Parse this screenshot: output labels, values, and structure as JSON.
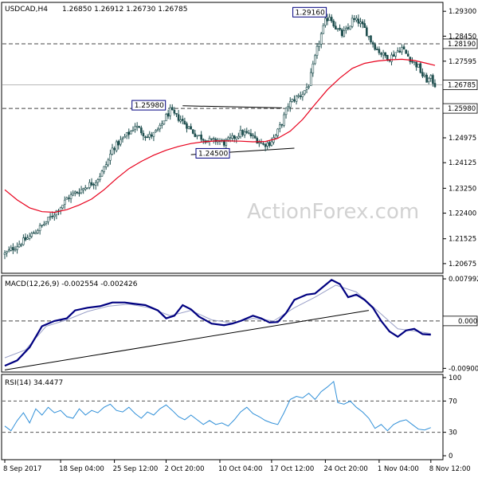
{
  "watermark": "ActionForex.com",
  "header": {
    "symbol_tf": "USDCAD,H4",
    "ohlc": "1.26850 1.26912 1.26730 1.26785"
  },
  "macd_label": "MACD(12,26,9) -0.002554 -0.002426",
  "rsi_label": "RSI(14) 34.4477",
  "colors": {
    "candle": "#1e4e4e",
    "ma": "#e8001c",
    "macd": "#000080",
    "signal": "#9aa0c8",
    "rsi": "#2f8fd8",
    "tag_border": "#000080"
  },
  "chart_data": [
    {
      "type": "candlestick",
      "title": "USDCAD,H4",
      "ylim": [
        1.204,
        1.2955
      ],
      "yticks": [
        "1.29300",
        "1.28450",
        "1.27595",
        "1.26785",
        "1.25980",
        "1.24975",
        "1.24125",
        "1.23250",
        "1.22400",
        "1.21525",
        "1.20675"
      ],
      "price_tags": {
        "right": [
          "1.28190",
          "1.26785",
          "1.25980"
        ],
        "inline": [
          {
            "label": "1.29160",
            "value": 1.2916
          },
          {
            "label": "1.25980",
            "value": 1.2598
          },
          {
            "label": "1.24500",
            "value": 1.245
          }
        ]
      },
      "horizontal_lines": [
        1.2819,
        1.2598
      ],
      "current_price": 1.26785,
      "close_path": [
        [
          0,
          1.21
        ],
        [
          4,
          1.212
        ],
        [
          8,
          1.214
        ],
        [
          12,
          1.216
        ],
        [
          16,
          1.2185
        ],
        [
          20,
          1.221
        ],
        [
          24,
          1.224
        ],
        [
          28,
          1.227
        ],
        [
          30,
          1.229
        ],
        [
          33,
          1.2305
        ],
        [
          37,
          1.232
        ],
        [
          40,
          1.2335
        ],
        [
          44,
          1.235
        ],
        [
          47,
          1.238
        ],
        [
          50,
          1.242
        ],
        [
          52,
          1.246
        ],
        [
          55,
          1.248
        ],
        [
          58,
          1.25
        ],
        [
          61,
          1.252
        ],
        [
          63,
          1.254
        ],
        [
          66,
          1.252
        ],
        [
          69,
          1.25
        ],
        [
          72,
          1.251
        ],
        [
          75,
          1.253
        ],
        [
          77,
          1.256
        ],
        [
          80,
          1.259
        ],
        [
          82,
          1.2575
        ],
        [
          85,
          1.256
        ],
        [
          88,
          1.254
        ],
        [
          92,
          1.251
        ],
        [
          96,
          1.2495
        ],
        [
          100,
          1.2485
        ],
        [
          103,
          1.249
        ],
        [
          106,
          1.248
        ],
        [
          110,
          1.2495
        ],
        [
          114,
          1.2515
        ],
        [
          118,
          1.251
        ],
        [
          122,
          1.249
        ],
        [
          125,
          1.2475
        ],
        [
          128,
          1.248
        ],
        [
          131,
          1.2505
        ],
        [
          134,
          1.255
        ],
        [
          137,
          1.261
        ],
        [
          140,
          1.263
        ],
        [
          144,
          1.265
        ],
        [
          147,
          1.268
        ],
        [
          149,
          1.274
        ],
        [
          151,
          1.28
        ],
        [
          153,
          1.285
        ],
        [
          155,
          1.2895
        ],
        [
          157,
          1.2915
        ],
        [
          160,
          1.2875
        ],
        [
          163,
          1.285
        ],
        [
          166,
          1.287
        ],
        [
          168,
          1.29
        ],
        [
          171,
          1.2895
        ],
        [
          174,
          1.287
        ],
        [
          177,
          1.283
        ],
        [
          180,
          1.28
        ],
        [
          183,
          1.278
        ],
        [
          186,
          1.277
        ],
        [
          189,
          1.279
        ],
        [
          192,
          1.2805
        ],
        [
          194,
          1.2785
        ],
        [
          197,
          1.276
        ],
        [
          200,
          1.274
        ],
        [
          202,
          1.271
        ],
        [
          204,
          1.2695
        ],
        [
          206,
          1.27
        ],
        [
          208,
          1.26785
        ]
      ],
      "ma_path": [
        [
          0,
          1.232
        ],
        [
          6,
          1.2285
        ],
        [
          12,
          1.2258
        ],
        [
          18,
          1.2245
        ],
        [
          24,
          1.2243
        ],
        [
          30,
          1.2252
        ],
        [
          36,
          1.2268
        ],
        [
          42,
          1.2288
        ],
        [
          48,
          1.232
        ],
        [
          54,
          1.2358
        ],
        [
          60,
          1.2392
        ],
        [
          66,
          1.2417
        ],
        [
          72,
          1.2438
        ],
        [
          78,
          1.2455
        ],
        [
          84,
          1.2468
        ],
        [
          90,
          1.2478
        ],
        [
          96,
          1.2484
        ],
        [
          102,
          1.2487
        ],
        [
          108,
          1.2487
        ],
        [
          114,
          1.2486
        ],
        [
          120,
          1.2484
        ],
        [
          126,
          1.2485
        ],
        [
          132,
          1.2496
        ],
        [
          138,
          1.252
        ],
        [
          144,
          1.256
        ],
        [
          150,
          1.2612
        ],
        [
          156,
          1.2662
        ],
        [
          162,
          1.2702
        ],
        [
          168,
          1.2735
        ],
        [
          174,
          1.2752
        ],
        [
          180,
          1.276
        ],
        [
          186,
          1.2764
        ],
        [
          192,
          1.2766
        ],
        [
          198,
          1.2762
        ],
        [
          204,
          1.2752
        ],
        [
          208,
          1.2745
        ]
      ],
      "channel_upper": [
        [
          86,
          1.2607
        ],
        [
          134,
          1.26
        ]
      ],
      "channel_lower": [
        [
          90,
          1.244
        ],
        [
          140,
          1.2462
        ]
      ],
      "x_labels": [
        {
          "label": "8 Sep 2017",
          "i": 0
        },
        {
          "label": "18 Sep 04:00",
          "i": 27
        },
        {
          "label": "25 Sep 12:00",
          "i": 53
        },
        {
          "label": "2 Oct 20:00",
          "i": 78
        },
        {
          "label": "10 Oct 04:00",
          "i": 104
        },
        {
          "label": "17 Oct 12:00",
          "i": 129
        },
        {
          "label": "24 Oct 20:00",
          "i": 155
        },
        {
          "label": "1 Nov 04:00",
          "i": 181
        },
        {
          "label": "8 Nov 12:00",
          "i": 206
        }
      ]
    },
    {
      "type": "line",
      "title": "MACD(12,26,9)",
      "ylim": [
        -0.0094,
        0.0083
      ],
      "yticks": [
        "0.007992",
        "0.00",
        "0.000",
        "-0.009002"
      ],
      "series": [
        {
          "name": "MACD",
          "values": [
            [
              0,
              -0.0085
            ],
            [
              6,
              -0.0075
            ],
            [
              12,
              -0.005
            ],
            [
              18,
              -0.001
            ],
            [
              24,
              0.0
            ],
            [
              30,
              0.0005
            ],
            [
              34,
              0.002
            ],
            [
              40,
              0.0025
            ],
            [
              46,
              0.0028
            ],
            [
              52,
              0.0035
            ],
            [
              58,
              0.0035
            ],
            [
              62,
              0.0033
            ],
            [
              68,
              0.003
            ],
            [
              74,
              0.002
            ],
            [
              78,
              0.0005
            ],
            [
              82,
              0.001
            ],
            [
              86,
              0.003
            ],
            [
              90,
              0.0022
            ],
            [
              94,
              0.0008
            ],
            [
              100,
              -0.0005
            ],
            [
              106,
              -0.0008
            ],
            [
              110,
              -0.0005
            ],
            [
              114,
              0.0
            ],
            [
              120,
              0.001
            ],
            [
              124,
              0.0005
            ],
            [
              128,
              -0.0003
            ],
            [
              132,
              -0.0002
            ],
            [
              136,
              0.0015
            ],
            [
              140,
              0.004
            ],
            [
              146,
              0.005
            ],
            [
              150,
              0.0052
            ],
            [
              154,
              0.0065
            ],
            [
              158,
              0.0078
            ],
            [
              162,
              0.007
            ],
            [
              166,
              0.0045
            ],
            [
              170,
              0.005
            ],
            [
              174,
              0.004
            ],
            [
              178,
              0.0025
            ],
            [
              182,
              0.0
            ],
            [
              186,
              -0.002
            ],
            [
              190,
              -0.003
            ],
            [
              194,
              -0.0018
            ],
            [
              198,
              -0.0015
            ],
            [
              202,
              -0.0025
            ],
            [
              206,
              -0.0026
            ]
          ]
        },
        {
          "name": "Signal",
          "values": [
            [
              0,
              -0.007
            ],
            [
              10,
              -0.0055
            ],
            [
              20,
              -0.001
            ],
            [
              30,
              0.0002
            ],
            [
              40,
              0.0018
            ],
            [
              50,
              0.0028
            ],
            [
              60,
              0.0032
            ],
            [
              70,
              0.0025
            ],
            [
              80,
              0.001
            ],
            [
              90,
              0.002
            ],
            [
              100,
              0.0002
            ],
            [
              110,
              -0.0004
            ],
            [
              120,
              0.0005
            ],
            [
              130,
              0.0
            ],
            [
              140,
              0.0025
            ],
            [
              150,
              0.0045
            ],
            [
              160,
              0.0068
            ],
            [
              170,
              0.0055
            ],
            [
              180,
              0.002
            ],
            [
              190,
              -0.0015
            ],
            [
              200,
              -0.002
            ],
            [
              206,
              -0.0024
            ]
          ]
        }
      ],
      "trendline": [
        [
          0,
          -0.0093
        ],
        [
          176,
          0.002
        ]
      ]
    },
    {
      "type": "line",
      "title": "RSI(14)",
      "ylim": [
        -3,
        102
      ],
      "yticks": [
        "100",
        "70",
        "30",
        "0"
      ],
      "levels": [
        70,
        30
      ],
      "series": [
        {
          "name": "RSI",
          "values": [
            [
              0,
              38
            ],
            [
              3,
              32
            ],
            [
              6,
              45
            ],
            [
              9,
              55
            ],
            [
              12,
              42
            ],
            [
              15,
              60
            ],
            [
              18,
              52
            ],
            [
              21,
              62
            ],
            [
              24,
              55
            ],
            [
              27,
              58
            ],
            [
              30,
              50
            ],
            [
              33,
              48
            ],
            [
              36,
              60
            ],
            [
              39,
              52
            ],
            [
              42,
              58
            ],
            [
              45,
              55
            ],
            [
              48,
              62
            ],
            [
              51,
              66
            ],
            [
              54,
              58
            ],
            [
              57,
              56
            ],
            [
              60,
              62
            ],
            [
              63,
              54
            ],
            [
              66,
              48
            ],
            [
              69,
              56
            ],
            [
              72,
              52
            ],
            [
              75,
              60
            ],
            [
              78,
              65
            ],
            [
              81,
              58
            ],
            [
              84,
              50
            ],
            [
              87,
              46
            ],
            [
              90,
              52
            ],
            [
              93,
              46
            ],
            [
              96,
              40
            ],
            [
              99,
              45
            ],
            [
              102,
              40
            ],
            [
              105,
              42
            ],
            [
              108,
              38
            ],
            [
              111,
              46
            ],
            [
              114,
              56
            ],
            [
              117,
              62
            ],
            [
              120,
              54
            ],
            [
              123,
              50
            ],
            [
              126,
              45
            ],
            [
              129,
              42
            ],
            [
              132,
              40
            ],
            [
              135,
              55
            ],
            [
              138,
              72
            ],
            [
              141,
              76
            ],
            [
              144,
              74
            ],
            [
              147,
              80
            ],
            [
              150,
              72
            ],
            [
              153,
              82
            ],
            [
              156,
              88
            ],
            [
              159,
              95
            ],
            [
              161,
              68
            ],
            [
              164,
              66
            ],
            [
              167,
              70
            ],
            [
              170,
              62
            ],
            [
              173,
              56
            ],
            [
              176,
              48
            ],
            [
              179,
              35
            ],
            [
              182,
              40
            ],
            [
              185,
              32
            ],
            [
              188,
              40
            ],
            [
              191,
              44
            ],
            [
              194,
              46
            ],
            [
              197,
              40
            ],
            [
              200,
              34
            ],
            [
              203,
              33
            ],
            [
              206,
              36
            ]
          ]
        }
      ]
    }
  ]
}
